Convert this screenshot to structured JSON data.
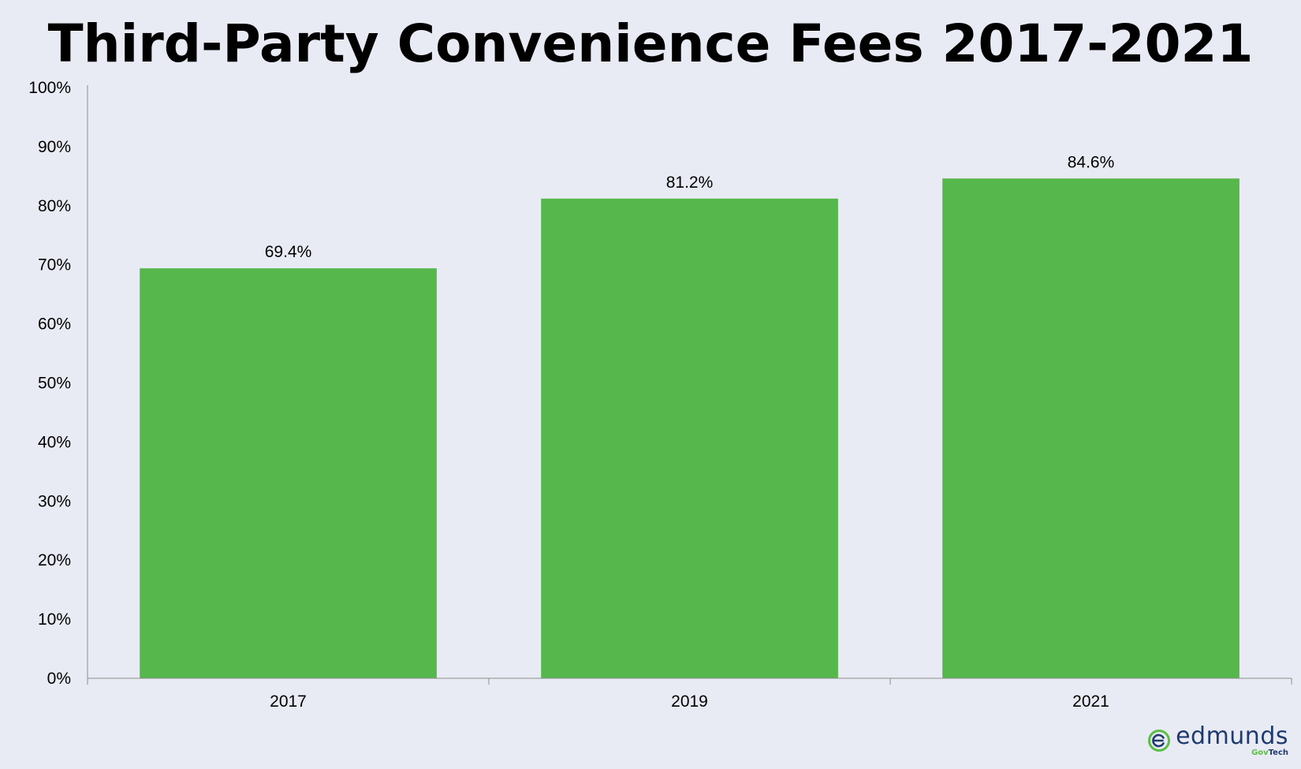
{
  "colors": {
    "background": "#E9EBF4",
    "bar": "#55B74C",
    "axis": "#8C8C8C",
    "logo_blue": "#1F3A6E",
    "logo_green": "#5BBE45"
  },
  "logo": {
    "wordmark": "edmunds",
    "sub_gov": "Gov",
    "sub_tech": "Tech",
    "icon": "edmunds-e-logo-icon"
  },
  "chart_data": {
    "type": "bar",
    "title": "Third-Party Convenience Fees 2017-2021",
    "xlabel": "",
    "ylabel": "",
    "categories": [
      "2017",
      "2019",
      "2021"
    ],
    "values": [
      69.4,
      81.2,
      84.6
    ],
    "data_labels": [
      "69.4%",
      "81.2%",
      "84.6%"
    ],
    "ylim": [
      0,
      100
    ],
    "y_ticks": [
      0,
      10,
      20,
      30,
      40,
      50,
      60,
      70,
      80,
      90,
      100
    ],
    "y_tick_labels": [
      "0%",
      "10%",
      "20%",
      "30%",
      "40%",
      "50%",
      "60%",
      "70%",
      "80%",
      "90%",
      "100%"
    ],
    "grid": false,
    "legend": "none"
  }
}
